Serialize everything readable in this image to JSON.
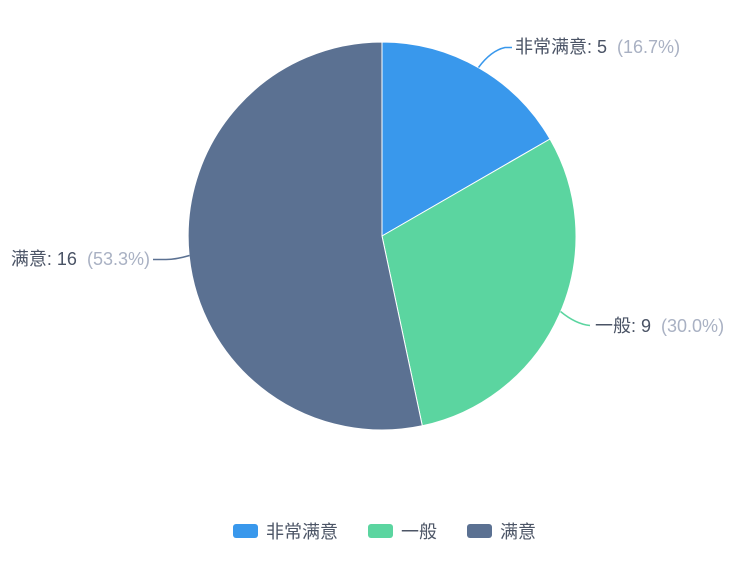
{
  "page": {
    "background": "#ffffff"
  },
  "chart_data": {
    "type": "pie",
    "title": "",
    "categories": [
      "非常满意",
      "一般",
      "满意"
    ],
    "values": [
      5,
      9,
      16
    ],
    "total": 30,
    "percentages": [
      "16.7%",
      "30.0%",
      "53.3%"
    ],
    "colors": [
      "#3998ec",
      "#5bd5a0",
      "#5b7192"
    ],
    "label_color": "#4a5365",
    "percent_color": "#a9b1c3",
    "legend": {
      "position": "bottom",
      "items": [
        "非常满意",
        "一般",
        "满意"
      ]
    },
    "labels": [
      {
        "main": "非常满意: 5",
        "pct": "(16.7%)"
      },
      {
        "main": "一般: 9",
        "pct": "(30.0%)"
      },
      {
        "main": "满意: 16",
        "pct": "(53.3%)"
      }
    ]
  }
}
